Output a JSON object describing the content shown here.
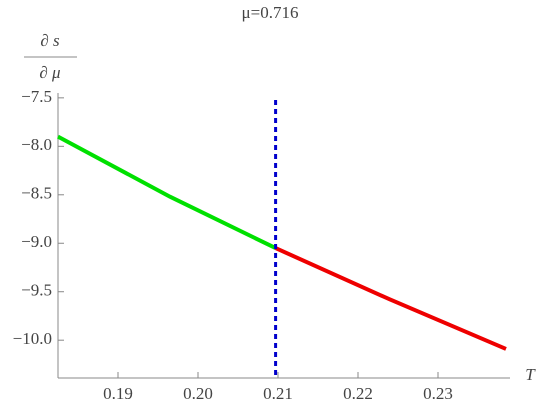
{
  "chart_data": {
    "type": "line",
    "title": "μ=0.716",
    "y_label_top": "∂ s",
    "y_label_bottom": "∂ μ",
    "x_label": "T",
    "xlim": [
      0.1825,
      0.239
    ],
    "ylim": [
      -10.39,
      -7.45
    ],
    "xticks": [
      0.19,
      {
        "value": 0.2,
        "label": "0.20"
      },
      0.21,
      0.22,
      0.23
    ],
    "yticks": [
      {
        "value": -7.5,
        "label": "−7.5"
      },
      {
        "value": -8,
        "label": "−8.0"
      },
      {
        "value": -8.5,
        "label": "−8.5"
      },
      {
        "value": -9,
        "label": "−9.0"
      },
      {
        "value": -9.5,
        "label": "−9.5"
      },
      {
        "value": -10,
        "label": "−10.0"
      }
    ],
    "series": [
      {
        "color": "#00e000",
        "x": [
          0.1825,
          0.1965,
          0.2097
        ],
        "values": [
          -7.9,
          -8.52,
          -9.05
        ]
      },
      {
        "color": "#ee0000",
        "x": [
          0.2097,
          0.224,
          0.2385
        ],
        "values": [
          -9.05,
          -9.58,
          -10.09
        ]
      }
    ],
    "vline": {
      "x": 0.2097,
      "color": "#0000cc"
    }
  }
}
